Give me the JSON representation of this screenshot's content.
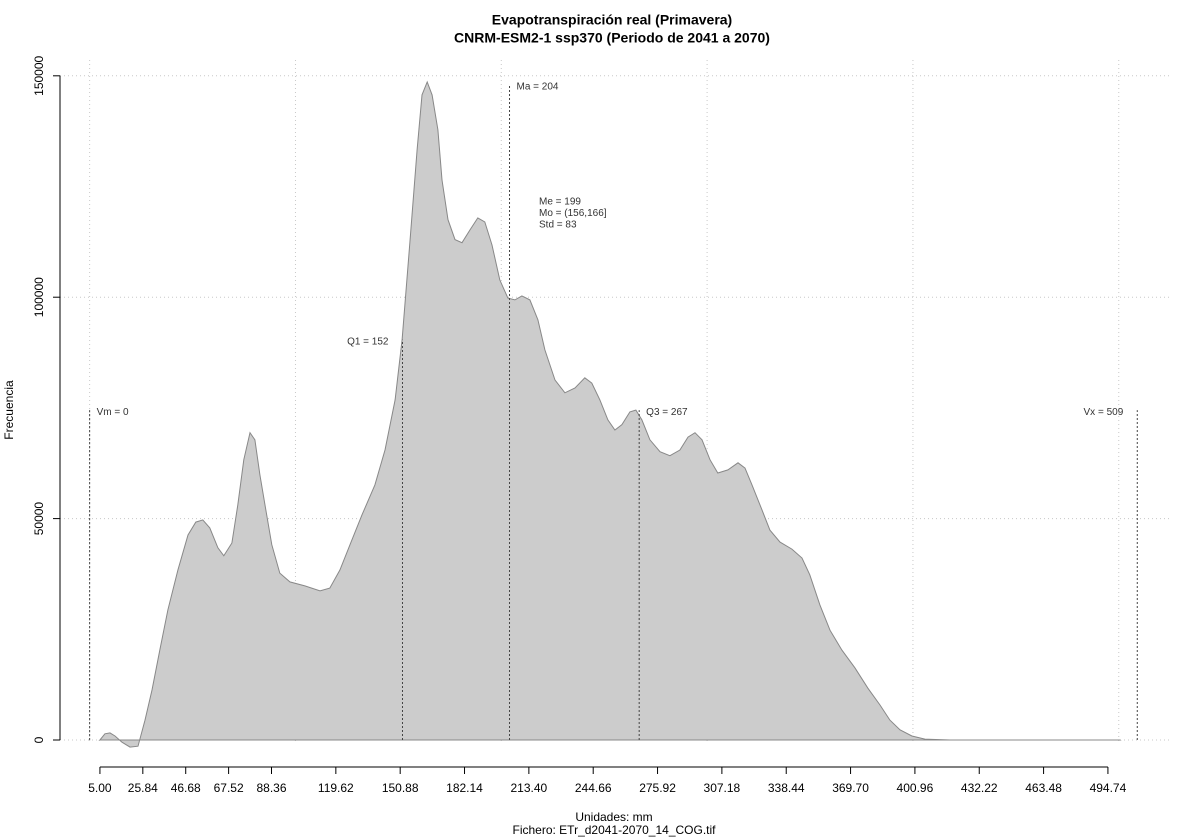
{
  "chart_data": {
    "type": "area",
    "title": "Evapotranspiración real (Primavera)",
    "subtitle": "CNRM-ESM2-1 ssp370 (Periodo de 2041 a 2070)",
    "x_label": "Unidades: mm",
    "caption": "Fichero: ETr_d2041-2070_14_COG.tif",
    "y_label": "Frecuencia",
    "color": "#cccccc",
    "line_color": "#888888",
    "grid": true,
    "xlim": [
      -14.4,
      524.9
    ],
    "ylim": [
      -6100,
      154700
    ],
    "xticks": [
      {
        "value": 5,
        "label": "5.00"
      },
      25.84,
      46.68,
      67.52,
      88.36,
      119.62,
      150.88,
      182.14,
      {
        "value": 213.4,
        "label": "213.40"
      },
      244.66,
      275.92,
      307.18,
      338.44,
      {
        "value": 369.7,
        "label": "369.70"
      },
      400.96,
      432.22,
      463.48,
      494.74
    ],
    "yticks": [
      0,
      50000,
      100000,
      150000
    ],
    "xgrid": [
      0,
      100,
      200,
      300,
      400,
      500
    ],
    "x": [
      5,
      7.4,
      9.9,
      12.3,
      15.7,
      19.6,
      23.5,
      26.9,
      30.3,
      34.1,
      38.0,
      42.9,
      47.8,
      51.6,
      55.0,
      58.4,
      62.3,
      65.2,
      69.1,
      72.0,
      74.9,
      77.9,
      80.3,
      82.7,
      85.6,
      88.5,
      92.4,
      97.3,
      104.6,
      111.9,
      116.7,
      121.6,
      126.5,
      132.3,
      138.6,
      143.5,
      148.4,
      151.8,
      155.7,
      159.1,
      161.5,
      164.0,
      166.4,
      169.2,
      171.2,
      174.1,
      177.5,
      180.9,
      184.8,
      188.6,
      192.0,
      195.5,
      199.3,
      203.2,
      206.6,
      210.0,
      213.9,
      217.8,
      221.2,
      226.1,
      230.9,
      235.8,
      240.6,
      244.0,
      247.9,
      251.8,
      255.2,
      258.6,
      262.5,
      265.4,
      268.3,
      272.2,
      277.1,
      281.9,
      286.8,
      290.7,
      294.1,
      297.5,
      301.4,
      305.2,
      310.1,
      315.0,
      318.4,
      321.8,
      326.6,
      330.5,
      335.4,
      341.2,
      346.1,
      349.9,
      354.8,
      359.7,
      365.5,
      371.8,
      378.1,
      384.0,
      388.8,
      393.7,
      399.5,
      405.8,
      418.0,
      500.6
    ],
    "values": [
      0,
      1400,
      1600,
      900,
      -500,
      -1600,
      -1400,
      4500,
      11300,
      20300,
      29400,
      38400,
      46300,
      49200,
      49700,
      47900,
      43400,
      41600,
      44500,
      53100,
      63300,
      69400,
      67800,
      59900,
      52000,
      44100,
      37700,
      35700,
      34800,
      33700,
      34300,
      38400,
      44100,
      50800,
      57600,
      65500,
      76800,
      90400,
      113000,
      133300,
      145700,
      148600,
      145700,
      137800,
      126500,
      117500,
      113000,
      112300,
      115200,
      117900,
      117000,
      111800,
      103900,
      99800,
      99400,
      100300,
      99400,
      94900,
      88100,
      81300,
      78400,
      79500,
      81800,
      80600,
      76800,
      72300,
      70000,
      71200,
      74100,
      74500,
      72300,
      67800,
      65100,
      64200,
      65500,
      68400,
      69400,
      67800,
      63300,
      60300,
      61000,
      62600,
      61400,
      57600,
      52000,
      47400,
      44700,
      43100,
      41100,
      37300,
      30500,
      24800,
      20300,
      16300,
      11700,
      7900,
      4500,
      2300,
      900,
      200,
      0,
      0
    ],
    "markers": [
      {
        "label": "Vm = 0",
        "x": 0,
        "top": 74500
      },
      {
        "label": "Q1 = 152",
        "x": 152,
        "top": 90400
      },
      {
        "label": "Ma = 204",
        "x": 204,
        "top": 148000
      },
      {
        "label": "Q3 = 267",
        "x": 267,
        "top": 74500
      },
      {
        "label": "Vx = 509",
        "x": 509,
        "top": 74500
      }
    ],
    "stats_text": [
      "Me = 199",
      "Mo = (156,166]",
      "Std = 83"
    ]
  }
}
